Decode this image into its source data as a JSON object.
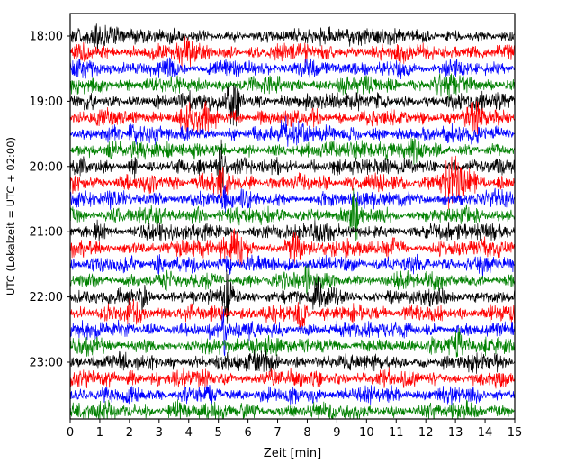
{
  "chart_data": {
    "type": "line",
    "title": "",
    "xlabel": "Zeit  [min]",
    "ylabel": "UTC (Lokalzeit = UTC + 02:00)",
    "x_range": [
      0,
      15
    ],
    "x_ticks": [
      0,
      1,
      2,
      3,
      4,
      5,
      6,
      7,
      8,
      9,
      10,
      11,
      12,
      13,
      14,
      15
    ],
    "y_tick_labels": [
      {
        "row": 0,
        "label": "18:00"
      },
      {
        "row": 4,
        "label": "19:00"
      },
      {
        "row": 8,
        "label": "20:00"
      },
      {
        "row": 12,
        "label": "21:00"
      },
      {
        "row": 16,
        "label": "22:00"
      },
      {
        "row": 20,
        "label": "23:00"
      }
    ],
    "rows": 24,
    "minutes_per_row": 15,
    "grid": false,
    "legend": "none",
    "colors": {
      "black": "#000000",
      "red": "#ff0000",
      "blue": "#0000ff",
      "green": "#008000"
    },
    "traces": [
      {
        "start": "18:00",
        "color": "black",
        "seed": 1,
        "level": 1.0,
        "spikes": [
          {
            "x": 0.9,
            "a": 1.2,
            "w": 0.2
          }
        ]
      },
      {
        "start": "18:15",
        "color": "red",
        "seed": 2,
        "level": 1.0,
        "spikes": [
          {
            "x": 4.0,
            "a": 0.8,
            "w": 0.3
          },
          {
            "x": 13.5,
            "a": 0.9,
            "w": 0.25
          }
        ]
      },
      {
        "start": "18:30",
        "color": "blue",
        "seed": 3,
        "level": 1.0,
        "spikes": []
      },
      {
        "start": "18:45",
        "color": "green",
        "seed": 4,
        "level": 1.0,
        "spikes": [
          {
            "x": 12.8,
            "a": 1.0,
            "w": 0.3
          }
        ]
      },
      {
        "start": "19:00",
        "color": "black",
        "seed": 5,
        "level": 1.0,
        "spikes": [
          {
            "x": 5.5,
            "a": 2.6,
            "w": 0.35
          },
          {
            "x": 0.6,
            "a": 1.0,
            "w": 0.2
          }
        ]
      },
      {
        "start": "19:15",
        "color": "red",
        "seed": 6,
        "level": 1.0,
        "spikes": [
          {
            "x": 4.2,
            "a": 1.0,
            "w": 0.5
          },
          {
            "x": 13.6,
            "a": 1.4,
            "w": 0.25
          }
        ]
      },
      {
        "start": "19:30",
        "color": "blue",
        "seed": 7,
        "level": 1.0,
        "spikes": [
          {
            "x": 7.4,
            "a": 0.8,
            "w": 0.3
          }
        ]
      },
      {
        "start": "19:45",
        "color": "green",
        "seed": 8,
        "level": 1.0,
        "spikes": [
          {
            "x": 11.8,
            "a": 0.9,
            "w": 0.25
          }
        ]
      },
      {
        "start": "20:00",
        "color": "black",
        "seed": 9,
        "level": 1.0,
        "spikes": [
          {
            "x": 2.2,
            "a": 1.6,
            "w": 0.15
          },
          {
            "x": 5.1,
            "a": 1.8,
            "w": 0.1
          },
          {
            "x": 7.0,
            "a": 1.2,
            "w": 0.15
          }
        ]
      },
      {
        "start": "20:15",
        "color": "red",
        "seed": 10,
        "level": 1.0,
        "spikes": [
          {
            "x": 13.0,
            "a": 2.4,
            "w": 0.45
          },
          {
            "x": 5.0,
            "a": 0.8,
            "w": 0.3
          }
        ]
      },
      {
        "start": "20:30",
        "color": "blue",
        "seed": 11,
        "level": 1.0,
        "spikes": [
          {
            "x": 5.2,
            "a": 1.5,
            "w": 0.08
          }
        ]
      },
      {
        "start": "20:45",
        "color": "green",
        "seed": 12,
        "level": 1.0,
        "spikes": [
          {
            "x": 9.6,
            "a": 2.0,
            "w": 0.12
          },
          {
            "x": 4.4,
            "a": 0.8,
            "w": 0.3
          }
        ]
      },
      {
        "start": "21:00",
        "color": "black",
        "seed": 13,
        "level": 1.0,
        "spikes": [
          {
            "x": 1.0,
            "a": 0.9,
            "w": 0.3
          }
        ]
      },
      {
        "start": "21:15",
        "color": "red",
        "seed": 14,
        "level": 1.0,
        "spikes": [
          {
            "x": 5.6,
            "a": 1.3,
            "w": 0.5
          },
          {
            "x": 7.6,
            "a": 1.4,
            "w": 0.3
          },
          {
            "x": 11.0,
            "a": 0.8,
            "w": 0.3
          }
        ]
      },
      {
        "start": "21:30",
        "color": "blue",
        "seed": 15,
        "level": 1.0,
        "spikes": [
          {
            "x": 2.9,
            "a": 1.5,
            "w": 0.1
          },
          {
            "x": 5.3,
            "a": 2.0,
            "w": 0.09
          }
        ]
      },
      {
        "start": "21:45",
        "color": "green",
        "seed": 16,
        "level": 1.0,
        "spikes": [
          {
            "x": 8.0,
            "a": 1.6,
            "w": 0.1
          }
        ]
      },
      {
        "start": "22:00",
        "color": "black",
        "seed": 17,
        "level": 1.0,
        "spikes": [
          {
            "x": 2.5,
            "a": 1.6,
            "w": 0.12
          },
          {
            "x": 5.3,
            "a": 1.8,
            "w": 0.12
          },
          {
            "x": 8.3,
            "a": 1.6,
            "w": 0.15
          }
        ]
      },
      {
        "start": "22:15",
        "color": "red",
        "seed": 18,
        "level": 1.0,
        "spikes": [
          {
            "x": 7.8,
            "a": 2.6,
            "w": 0.15
          },
          {
            "x": 2.1,
            "a": 1.0,
            "w": 0.2
          }
        ]
      },
      {
        "start": "22:30",
        "color": "blue",
        "seed": 19,
        "level": 1.0,
        "spikes": [
          {
            "x": 5.2,
            "a": 4.5,
            "w": 0.07
          }
        ]
      },
      {
        "start": "22:45",
        "color": "green",
        "seed": 20,
        "level": 1.0,
        "spikes": [
          {
            "x": 13.1,
            "a": 1.8,
            "w": 0.1
          },
          {
            "x": 9.8,
            "a": 1.0,
            "w": 0.15
          }
        ]
      },
      {
        "start": "23:00",
        "color": "black",
        "seed": 21,
        "level": 1.0,
        "spikes": [
          {
            "x": 6.5,
            "a": 0.8,
            "w": 0.3
          }
        ]
      },
      {
        "start": "23:15",
        "color": "red",
        "seed": 22,
        "level": 1.0,
        "spikes": [
          {
            "x": 2.0,
            "a": 1.0,
            "w": 0.2
          }
        ]
      },
      {
        "start": "23:30",
        "color": "blue",
        "seed": 23,
        "level": 1.0,
        "spikes": []
      },
      {
        "start": "23:45",
        "color": "green",
        "seed": 24,
        "level": 1.0,
        "spikes": [
          {
            "x": 3.5,
            "a": 0.7,
            "w": 0.3
          }
        ]
      }
    ]
  }
}
